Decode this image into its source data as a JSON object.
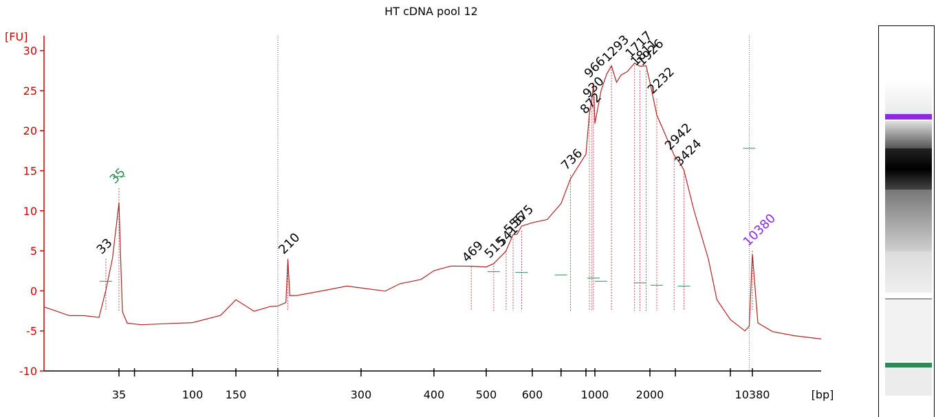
{
  "chart_data": {
    "type": "line",
    "title": "HT cDNA pool 12",
    "ylabel": "[FU]",
    "xlabel": "[bp]",
    "ylim": [
      -10,
      31
    ],
    "y_ticks": [
      -10,
      -5,
      0,
      5,
      10,
      15,
      20,
      25,
      30
    ],
    "x_ticks": [
      "35",
      "100",
      "150",
      "300",
      "400",
      "500",
      "600",
      "1000",
      "2000",
      "10380"
    ],
    "grid": false,
    "series": [
      {
        "x": [
          25,
          28,
          30,
          32,
          33,
          34,
          35,
          36,
          37,
          40,
          50,
          70,
          100,
          130,
          150,
          170,
          190,
          200,
          208,
          210,
          212,
          220,
          250,
          280,
          300,
          330,
          350,
          380,
          400,
          430,
          469,
          500,
          515,
          540,
          556,
          565,
          575,
          600,
          650,
          700,
          736,
          800,
          872,
          930,
          966,
          1000,
          1100,
          1200,
          1293,
          1400,
          1500,
          1600,
          1717,
          1811,
          1926,
          2000,
          2232,
          2500,
          2942,
          3200,
          3424,
          4000,
          5000,
          6000,
          8000,
          9500,
          10000,
          10380,
          10800,
          12000,
          14000,
          17000
        ],
        "values": [
          -2.0,
          -3.0,
          -3.0,
          -3.3,
          0.0,
          4.0,
          11.0,
          4.0,
          -2.5,
          -4.0,
          -4.3,
          -4.2,
          -4.0,
          -3.0,
          -1.0,
          -2.5,
          -2.0,
          -2.0,
          -1.5,
          4.0,
          -0.5,
          -0.5,
          0.0,
          0.5,
          0.3,
          0.0,
          1.0,
          1.5,
          2.5,
          3.0,
          3.0,
          3.0,
          3.5,
          5.0,
          7.0,
          7.0,
          8.0,
          8.5,
          9.0,
          11.0,
          14.0,
          17.0,
          22.0,
          24.0,
          26.0,
          21.0,
          25.0,
          27.0,
          28.0,
          26.0,
          27.0,
          27.5,
          28.5,
          28.0,
          28.0,
          26.0,
          22.0,
          20.0,
          17.0,
          16.0,
          15.0,
          10.0,
          4.0,
          -1.0,
          -3.5,
          -5.0,
          -4.5,
          4.5,
          -4.0,
          -5.0,
          -5.5,
          -6.0
        ]
      }
    ],
    "peaks": [
      {
        "label": "33",
        "x": 33,
        "y": 4.0
      },
      {
        "label": "35",
        "x": 35,
        "y": 12.8
      },
      {
        "label": "210",
        "x": 210,
        "y": 4.0
      },
      {
        "label": "469",
        "x": 469,
        "y": 3.0
      },
      {
        "label": "515",
        "x": 515,
        "y": 3.5
      },
      {
        "label": "541",
        "x": 541,
        "y": 5.0
      },
      {
        "label": "556",
        "x": 556,
        "y": 6.5
      },
      {
        "label": "575",
        "x": 575,
        "y": 7.5
      },
      {
        "label": "736",
        "x": 736,
        "y": 14.5
      },
      {
        "label": "872",
        "x": 872,
        "y": 21.5
      },
      {
        "label": "930",
        "x": 930,
        "y": 23.5
      },
      {
        "label": "966",
        "x": 966,
        "y": 26.0
      },
      {
        "label": "1293",
        "x": 1293,
        "y": 28.0
      },
      {
        "label": "1717",
        "x": 1717,
        "y": 28.5
      },
      {
        "label": "1811",
        "x": 1811,
        "y": 27.5
      },
      {
        "label": "1926",
        "x": 1926,
        "y": 27.5
      },
      {
        "label": "2232",
        "x": 2232,
        "y": 24.0
      },
      {
        "label": "2942",
        "x": 2942,
        "y": 17.0
      },
      {
        "label": "3424",
        "x": 3424,
        "y": 15.0
      },
      {
        "label": "10380",
        "x": 10380,
        "y": 5.0
      }
    ],
    "colors": {
      "axis": "#cc0000",
      "trace": "#b22222",
      "label": "#000000",
      "lower_marker": "#2e8b57",
      "upper_marker": "#8a2be2"
    }
  }
}
